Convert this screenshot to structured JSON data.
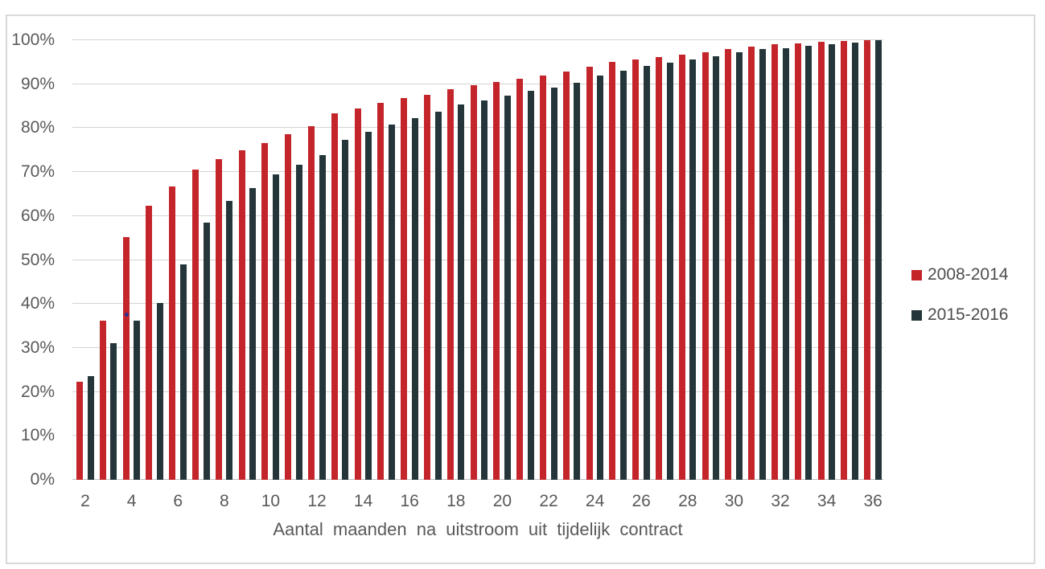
{
  "chart_data": {
    "type": "bar",
    "categories": [
      2,
      3,
      4,
      5,
      6,
      7,
      8,
      9,
      10,
      11,
      12,
      13,
      14,
      15,
      16,
      17,
      18,
      19,
      20,
      21,
      22,
      23,
      24,
      25,
      26,
      27,
      28,
      29,
      30,
      31,
      32,
      33,
      34,
      35,
      36
    ],
    "series": [
      {
        "name": "2008-2014",
        "color": "#c3252b",
        "values": [
          22.3,
          36.2,
          55.2,
          62.3,
          66.8,
          70.5,
          72.9,
          74.9,
          76.6,
          78.6,
          80.4,
          83.3,
          84.5,
          85.7,
          86.9,
          87.6,
          88.8,
          89.7,
          90.5,
          91.3,
          92.0,
          92.8,
          93.9,
          95.0,
          95.6,
          96.2,
          96.7,
          97.3,
          97.9,
          98.5,
          99.0,
          99.3,
          99.6,
          99.8,
          100.0
        ]
      },
      {
        "name": "2015-2016",
        "color": "#24363a",
        "values": [
          23.6,
          31.0,
          36.2,
          40.2,
          49.0,
          58.5,
          63.4,
          66.4,
          69.4,
          71.6,
          73.9,
          77.4,
          79.2,
          80.8,
          82.3,
          83.8,
          85.3,
          86.3,
          87.4,
          88.5,
          89.3,
          90.4,
          92.0,
          93.1,
          94.1,
          94.9,
          95.7,
          96.4,
          97.2,
          97.9,
          98.2,
          98.7,
          99.1,
          99.5,
          100.0
        ]
      }
    ],
    "title": "",
    "xlabel": "Aantal maanden na uitstroom uit tijdelijk contract",
    "ylabel": "",
    "ylim": [
      0,
      100
    ],
    "yticks": [
      "0%",
      "10%",
      "20%",
      "30%",
      "40%",
      "50%",
      "60%",
      "70%",
      "80%",
      "90%",
      "100%"
    ],
    "xticks": [
      2,
      4,
      6,
      8,
      10,
      12,
      14,
      16,
      18,
      20,
      22,
      24,
      26,
      28,
      30,
      32,
      34,
      36
    ],
    "grid": true,
    "legend_position": "right",
    "annotations": [
      {
        "type": "dot",
        "month": 4,
        "value": 38,
        "color": "#2e3192"
      }
    ]
  }
}
